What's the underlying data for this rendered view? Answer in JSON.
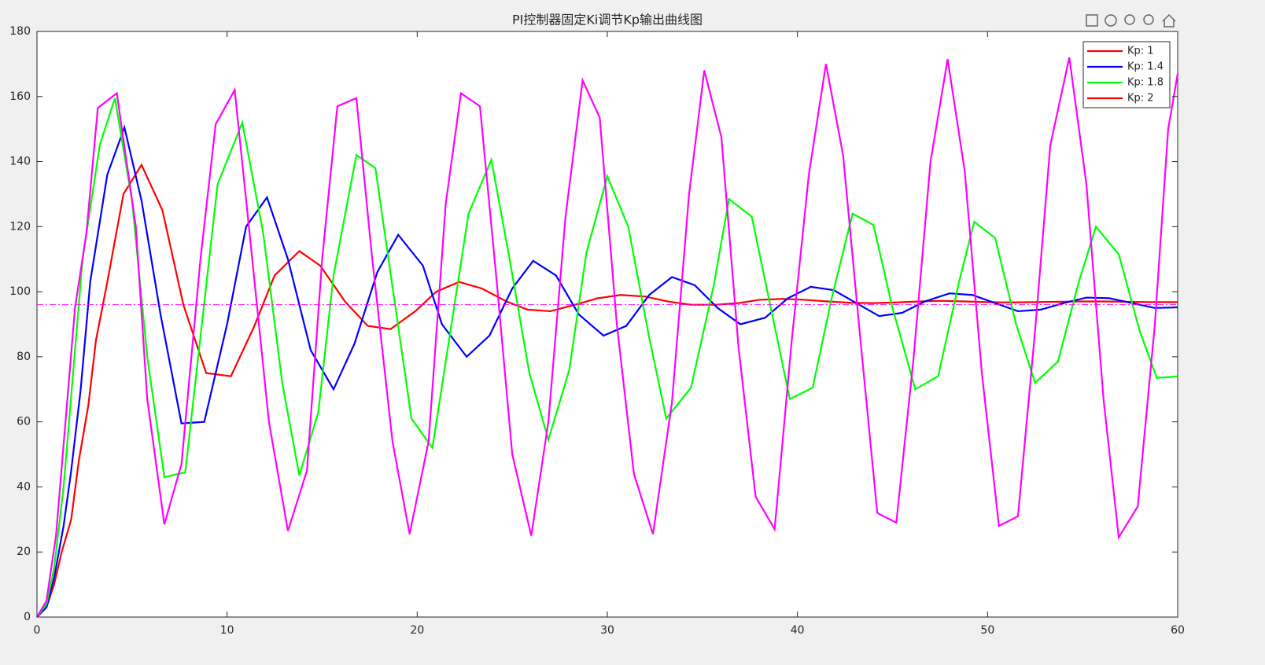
{
  "chart_data": {
    "type": "line",
    "title": "PI控制器固定Ki调节Kp输出曲线图",
    "xlim": [
      0,
      60
    ],
    "xticks": [
      0,
      10,
      20,
      30,
      40,
      50,
      60
    ],
    "ylim": [
      0,
      180
    ],
    "yticks": [
      0,
      20,
      40,
      60,
      80,
      100,
      120,
      140,
      160,
      180
    ],
    "grid": false,
    "legend": "upper right",
    "reference_line": {
      "value": 96,
      "color": "#ff00ff"
    },
    "series": [
      {
        "name": "Kp: 1",
        "color": "#ff0000",
        "x": [
          0,
          0.5,
          0.9,
          1.3,
          1.8,
          2.2,
          2.7,
          3.1,
          3.7,
          4.55,
          5.5,
          6.6,
          7.7,
          8.9,
          10.2,
          11.4,
          12.5,
          13.8,
          14.9,
          16.2,
          17.4,
          18.6,
          19.9,
          21.0,
          22.2,
          23.4,
          24.7,
          25.8,
          27.0,
          28.3,
          29.5,
          30.7,
          32.0,
          33.2,
          34.4,
          35.7,
          36.9,
          38.0,
          39.2,
          40.4,
          41.6,
          42.8,
          44.0,
          45.2,
          46.4,
          47.6,
          48.8,
          50.0,
          51.2,
          52.5,
          53.7,
          54.9,
          56.1,
          57.3,
          58.5,
          60
        ],
        "values": [
          0,
          3,
          10,
          20,
          30,
          48,
          65,
          85,
          103,
          130,
          139,
          125,
          96,
          75,
          74,
          89,
          105,
          112.5,
          108,
          97,
          89.5,
          88.5,
          94,
          100,
          103,
          101,
          97,
          94.5,
          94,
          96,
          98,
          99,
          98.5,
          97,
          96,
          96,
          96.5,
          97.5,
          97.8,
          97.5,
          97,
          96.6,
          96.5,
          96.7,
          97,
          97.2,
          97,
          96.8,
          96.7,
          96.8,
          96.9,
          97,
          97,
          96.9,
          96.8,
          96.8
        ]
      },
      {
        "name": "Kp: 1.4",
        "color": "#0000ff",
        "x": [
          0,
          0.5,
          0.9,
          1.4,
          1.8,
          2.3,
          2.8,
          3.7,
          4.6,
          5.5,
          6.5,
          7.6,
          8.8,
          10.0,
          11.0,
          12.1,
          13.2,
          14.4,
          15.6,
          16.7,
          17.9,
          19.0,
          20.3,
          21.3,
          22.6,
          23.8,
          25.0,
          26.1,
          27.3,
          28.5,
          29.8,
          31.0,
          32.2,
          33.4,
          34.6,
          35.8,
          37.0,
          38.3,
          39.5,
          40.7,
          41.9,
          43.1,
          44.3,
          45.5,
          46.7,
          48.0,
          49.2,
          50.4,
          51.6,
          52.8,
          54.0,
          55.2,
          56.4,
          57.6,
          58.8,
          60
        ],
        "values": [
          0,
          3,
          12,
          28,
          45,
          70,
          103,
          136,
          150.5,
          128,
          93,
          59.5,
          60,
          90,
          120,
          129,
          110,
          82,
          70,
          84,
          106,
          117.5,
          108,
          90,
          80,
          86.5,
          101,
          109.5,
          105,
          93,
          86.5,
          89.5,
          99,
          104.5,
          102,
          95,
          90,
          92,
          98,
          101.5,
          100.5,
          96.5,
          92.5,
          93.5,
          97,
          99.5,
          99,
          96.5,
          94,
          94.5,
          96.5,
          98.2,
          98,
          96.5,
          95,
          95.2
        ]
      },
      {
        "name": "Kp: 1.8",
        "color": "#00ff00",
        "x": [
          0,
          0.5,
          0.9,
          1.4,
          1.9,
          2.4,
          3.3,
          4.1,
          5.0,
          5.8,
          6.7,
          7.8,
          9.5,
          10.8,
          11.9,
          12.9,
          13.8,
          14.8,
          15.6,
          16.8,
          17.8,
          19.7,
          20.8,
          22.7,
          23.9,
          24.8,
          25.9,
          26.9,
          28.0,
          28.9,
          30.0,
          31.1,
          32.2,
          33.1,
          34.4,
          35.6,
          36.4,
          37.6,
          38.6,
          39.6,
          40.8,
          41.8,
          42.9,
          44.0,
          45.0,
          46.2,
          47.4,
          48.5,
          49.3,
          50.4,
          51.5,
          52.5,
          53.7,
          54.8,
          55.7,
          56.9,
          58.0,
          58.9,
          60
        ],
        "values": [
          0,
          4,
          15,
          40,
          75,
          110,
          145,
          159.5,
          128,
          80,
          43,
          44.5,
          133,
          152,
          118,
          72,
          43.5,
          63,
          105,
          142,
          138,
          61,
          52,
          124,
          140.5,
          112,
          75,
          54.5,
          76,
          112,
          135.5,
          120,
          86,
          61,
          70.5,
          102,
          128.5,
          123,
          95,
          67,
          70.5,
          98,
          124,
          120.5,
          95,
          70,
          74,
          103,
          121.5,
          116.5,
          90,
          72,
          78.5,
          103,
          120,
          111.5,
          88,
          73.5,
          74
        ]
      },
      {
        "name": "Kp: 2",
        "color": "#ff00ff",
        "legend_color": "#ff0000",
        "x": [
          0,
          0.5,
          1.0,
          1.5,
          2.0,
          2.6,
          3.2,
          4.2,
          5.2,
          5.8,
          6.7,
          7.6,
          8.6,
          9.4,
          10.4,
          11.2,
          12.2,
          13.2,
          14.2,
          15.0,
          15.8,
          16.8,
          17.6,
          18.7,
          19.6,
          20.6,
          21.5,
          22.3,
          23.3,
          24.2,
          25.0,
          26.0,
          26.9,
          27.8,
          28.7,
          29.6,
          30.5,
          31.4,
          32.4,
          33.4,
          34.3,
          35.1,
          36.0,
          36.9,
          37.8,
          38.8,
          39.7,
          40.6,
          41.5,
          42.4,
          43.3,
          44.2,
          45.2,
          46.1,
          47.0,
          47.9,
          48.8,
          49.7,
          50.6,
          51.6,
          52.5,
          53.3,
          54.3,
          55.2,
          56.1,
          56.9,
          57.9,
          58.8,
          59.5,
          60
        ],
        "values": [
          0,
          5,
          25,
          60,
          95,
          118,
          156.5,
          161,
          120,
          67,
          28.5,
          47,
          110,
          151.5,
          162,
          117,
          60,
          26.5,
          45,
          110,
          157,
          159.5,
          112,
          54,
          25.5,
          54,
          127,
          161,
          157,
          102,
          50,
          25,
          60,
          123,
          165,
          153.5,
          90,
          44,
          25.5,
          66,
          130,
          168,
          147.5,
          83,
          37,
          27,
          85,
          136,
          170,
          142,
          86,
          32,
          29,
          79,
          140,
          171.5,
          137,
          75,
          28,
          31,
          88,
          145,
          172,
          133,
          67,
          24.5,
          34,
          90,
          150,
          167
        ]
      }
    ]
  }
}
